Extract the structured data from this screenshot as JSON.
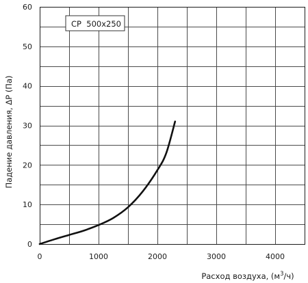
{
  "chart_data": {
    "type": "line",
    "xlabel_prefix": "Расход воздуха, (м",
    "xlabel_sup": "3",
    "xlabel_suffix": "/ч)",
    "ylabel": "Падение давления, ΔP (Па)",
    "xlim": [
      0,
      4500
    ],
    "ylim": [
      0,
      60
    ],
    "x_grid_step": 500,
    "y_grid_step": 5,
    "x_tick_labels": [
      "0",
      "1000",
      "2000",
      "3000",
      "4000"
    ],
    "y_tick_labels": [
      "0",
      "10",
      "20",
      "30",
      "40",
      "50",
      "60"
    ],
    "grid": true,
    "legend_position": "top-left",
    "series": [
      {
        "name": "CP  500x250",
        "color": "#111111",
        "points": [
          [
            0,
            0
          ],
          [
            250,
            1.2
          ],
          [
            500,
            2.3
          ],
          [
            750,
            3.4
          ],
          [
            1000,
            4.8
          ],
          [
            1250,
            6.6
          ],
          [
            1500,
            9.3
          ],
          [
            1750,
            13.3
          ],
          [
            2000,
            18.7
          ],
          [
            2150,
            23.0
          ],
          [
            2300,
            31.0
          ]
        ]
      }
    ]
  }
}
